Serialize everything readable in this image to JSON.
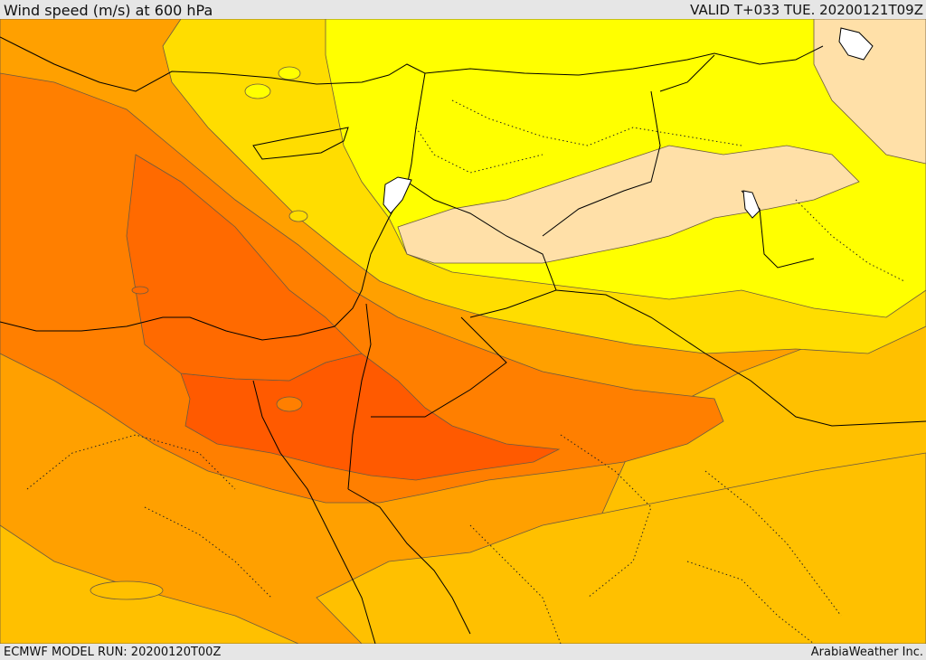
{
  "header": {
    "title": "Wind speed (m/s) at 600 hPa",
    "valid_time": "VALID T+033 TUE. 20200121T09Z"
  },
  "footer": {
    "model_run": "ECMWF MODEL RUN: 20200120T00Z",
    "credit": "ArabiaWeather Inc."
  },
  "colors": {
    "level_lightest": "#ffe0a8",
    "level_yellow": "#ffff00",
    "level_gold": "#ffdd00",
    "level_amber": "#ffc000",
    "level_orange_light": "#ffa000",
    "level_orange": "#ff7f00",
    "level_deep": "#ff5a00",
    "land_border": "#000000",
    "contour": "#6b5a40"
  }
}
